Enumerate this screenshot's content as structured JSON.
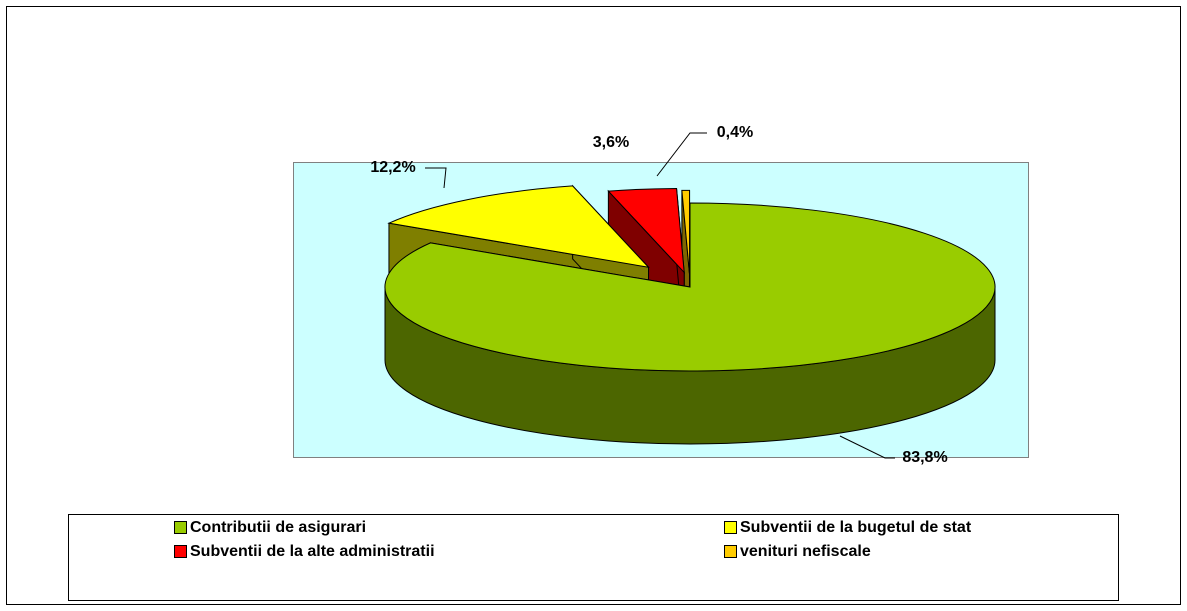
{
  "chart_data": {
    "type": "pie",
    "categories": [
      "Contributii de asigurari",
      "Subventii de la bugetul de stat",
      "Subventii de la alte administratii",
      "venituri nefiscale"
    ],
    "values": [
      83.8,
      12.2,
      3.6,
      0.4
    ],
    "value_labels": [
      "83,8%",
      "12,2%",
      "3,6%",
      "0,4%"
    ],
    "colors": [
      "#99cc00",
      "#ffff00",
      "#ff0000",
      "#ffcc00"
    ],
    "legend": "bottom"
  }
}
